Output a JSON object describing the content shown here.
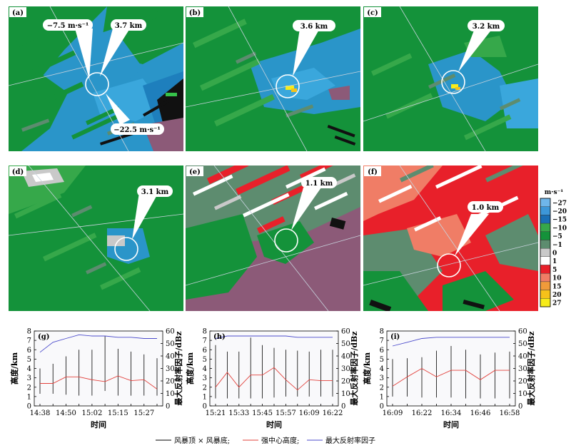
{
  "radar_panels": [
    {
      "id": "(a)",
      "callouts": [
        {
          "text": "−7.5 m·s⁻¹"
        },
        {
          "text": "3.7 km"
        },
        {
          "text": "−22.5 m·s⁻¹"
        }
      ]
    },
    {
      "id": "(b)",
      "callouts": [
        {
          "text": "3.6 km"
        }
      ]
    },
    {
      "id": "(c)",
      "callouts": [
        {
          "text": "3.2 km"
        }
      ]
    },
    {
      "id": "(d)",
      "callouts": [
        {
          "text": "3.1 km"
        }
      ]
    },
    {
      "id": "(e)",
      "callouts": [
        {
          "text": "1.1 km"
        }
      ]
    },
    {
      "id": "(f)",
      "callouts": [
        {
          "text": "1.0 km"
        }
      ]
    }
  ],
  "colorbar": {
    "unit": "m·s⁻¹",
    "levels": [
      {
        "label": "−27",
        "color": "#6fb6ea"
      },
      {
        "label": "−20",
        "color": "#3d97d8"
      },
      {
        "label": "−15",
        "color": "#1a6fb5"
      },
      {
        "label": "−10",
        "color": "#36a84a"
      },
      {
        "label": "−5",
        "color": "#14923a"
      },
      {
        "label": "−1",
        "color": "#5d8c6f"
      },
      {
        "label": "0",
        "color": "#c9c9c9"
      },
      {
        "label": "1",
        "color": "#ffffff"
      },
      {
        "label": "5",
        "color": "#e8202a"
      },
      {
        "label": "10",
        "color": "#f07d66"
      },
      {
        "label": "15",
        "color": "#f09b3a"
      },
      {
        "label": "20",
        "color": "#f6c21a"
      },
      {
        "label": "27",
        "color": "#f7ec1a"
      }
    ]
  },
  "chart_data": [
    {
      "type": "line",
      "panel": "(g)",
      "categories": [
        "14:38",
        "14:44",
        "14:50",
        "14:56",
        "15:02",
        "15:08",
        "15:15",
        "15:21",
        "15:27",
        "15:33"
      ],
      "x_tick_labels": [
        "14:38",
        "14:50",
        "15:02",
        "15:15",
        "15:27"
      ],
      "xlabel": "时间",
      "ylabel": "高度/km",
      "y2label": "最大反射率因子/dBz",
      "ylim": [
        0,
        8
      ],
      "y2lim": [
        0,
        60
      ],
      "storm_top": [
        4.0,
        4.5,
        5.3,
        6.0,
        6.0,
        7.5,
        6.1,
        5.8,
        5.5,
        5.1
      ],
      "storm_base": [
        1.3,
        1.3,
        1.2,
        1.1,
        1.1,
        1.6,
        1.1,
        1.1,
        1.1,
        1.1
      ],
      "core_height": [
        2.4,
        2.4,
        3.1,
        3.1,
        2.8,
        2.6,
        3.2,
        2.7,
        2.8,
        1.8
      ],
      "max_reflectivity": [
        43,
        51,
        54,
        57,
        56,
        56,
        55,
        55,
        54,
        54
      ]
    },
    {
      "type": "line",
      "panel": "(h)",
      "categories": [
        "15:21",
        "15:27",
        "15:33",
        "15:39",
        "15:45",
        "15:51",
        "15:57",
        "16:03",
        "16:09",
        "16:16",
        "16:22"
      ],
      "x_tick_labels": [
        "15:21",
        "15:33",
        "15:45",
        "15:57",
        "16:09",
        "16:22"
      ],
      "xlabel": "时间",
      "ylabel": "高度/km",
      "y2label": "最大反射率因子/dBz",
      "ylim": [
        0,
        8
      ],
      "y2lim": [
        0,
        60
      ],
      "storm_top": [
        6.5,
        5.8,
        5.8,
        7.3,
        6.5,
        6.2,
        6.0,
        5.9,
        5.8,
        6.0,
        6.0
      ],
      "storm_base": [
        0.8,
        0.8,
        0.8,
        0.8,
        0.8,
        0.9,
        1.0,
        1.0,
        1.0,
        1.0,
        1.0
      ],
      "core_height": [
        2.0,
        3.6,
        2.0,
        3.3,
        3.3,
        4.1,
        2.8,
        1.7,
        2.8,
        2.7,
        2.7
      ],
      "max_reflectivity": [
        54,
        56,
        56,
        56,
        56,
        56,
        56,
        55,
        55,
        55,
        55
      ]
    },
    {
      "type": "line",
      "panel": "(i)",
      "categories": [
        "16:09",
        "16:16",
        "16:22",
        "16:28",
        "16:34",
        "16:40",
        "16:46",
        "16:52",
        "16:58"
      ],
      "x_tick_labels": [
        "16:09",
        "16:22",
        "16:34",
        "16:46",
        "16:58"
      ],
      "xlabel": "时间",
      "ylabel": "高度/km",
      "y2label": "最大反射率因子/dBz",
      "ylim": [
        0,
        8
      ],
      "y2lim": [
        0,
        60
      ],
      "storm_top": [
        5.0,
        5.1,
        5.2,
        5.9,
        6.4,
        6.0,
        5.5,
        5.7,
        5.8
      ],
      "storm_base": [
        1.0,
        1.0,
        0.9,
        0.9,
        0.9,
        0.8,
        0.8,
        0.8,
        0.8
      ],
      "core_height": [
        2.1,
        3.1,
        4.0,
        3.1,
        3.8,
        3.8,
        2.8,
        3.8,
        3.8
      ],
      "max_reflectivity": [
        48,
        51,
        54,
        55,
        55,
        55,
        55,
        55,
        55
      ]
    }
  ],
  "legend": {
    "items": [
      {
        "label": "风暴顶 × 风暴底;",
        "color": "#000000"
      },
      {
        "label": "强中心高度;",
        "color": "#e2403b"
      },
      {
        "label": "最大反射率因子",
        "color": "#4b4bcb"
      }
    ]
  }
}
